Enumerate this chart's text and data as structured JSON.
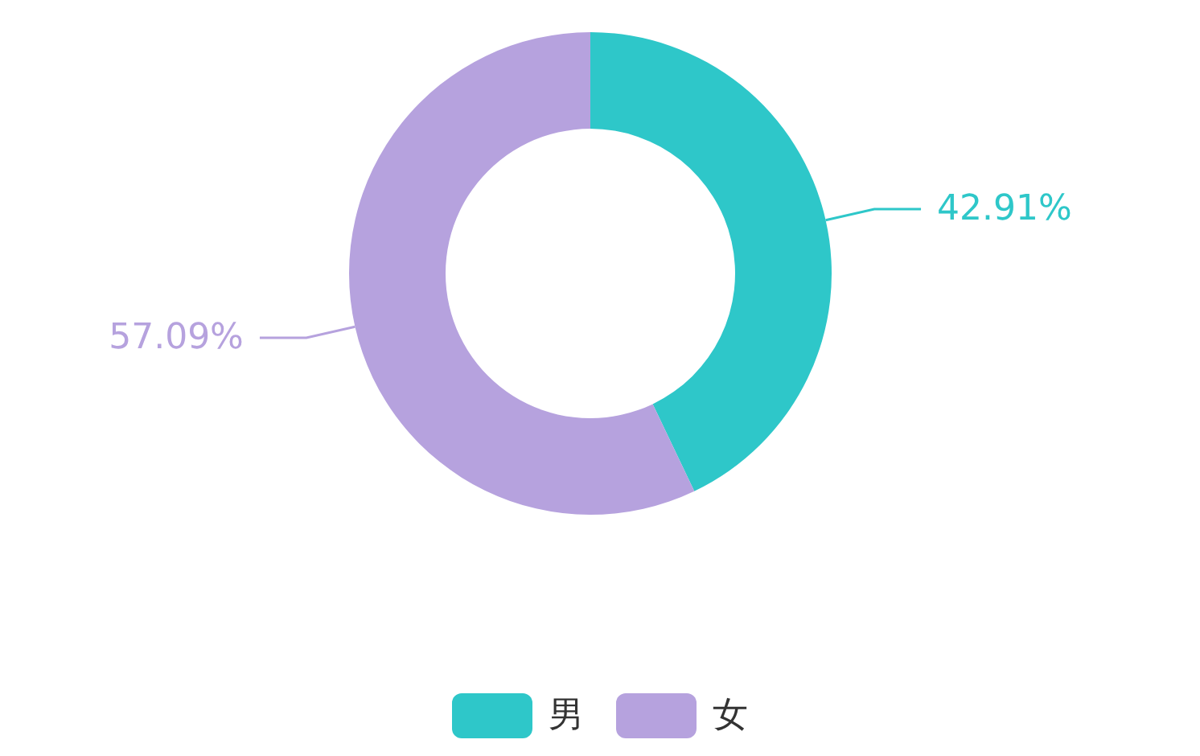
{
  "chart_data": {
    "type": "donut",
    "categories": [
      "男",
      "女"
    ],
    "values": [
      42.91,
      57.09
    ],
    "colors": [
      "#2ec7c9",
      "#b6a2de"
    ],
    "value_labels": [
      "42.91%",
      "57.09%"
    ],
    "legend": "bottom"
  }
}
